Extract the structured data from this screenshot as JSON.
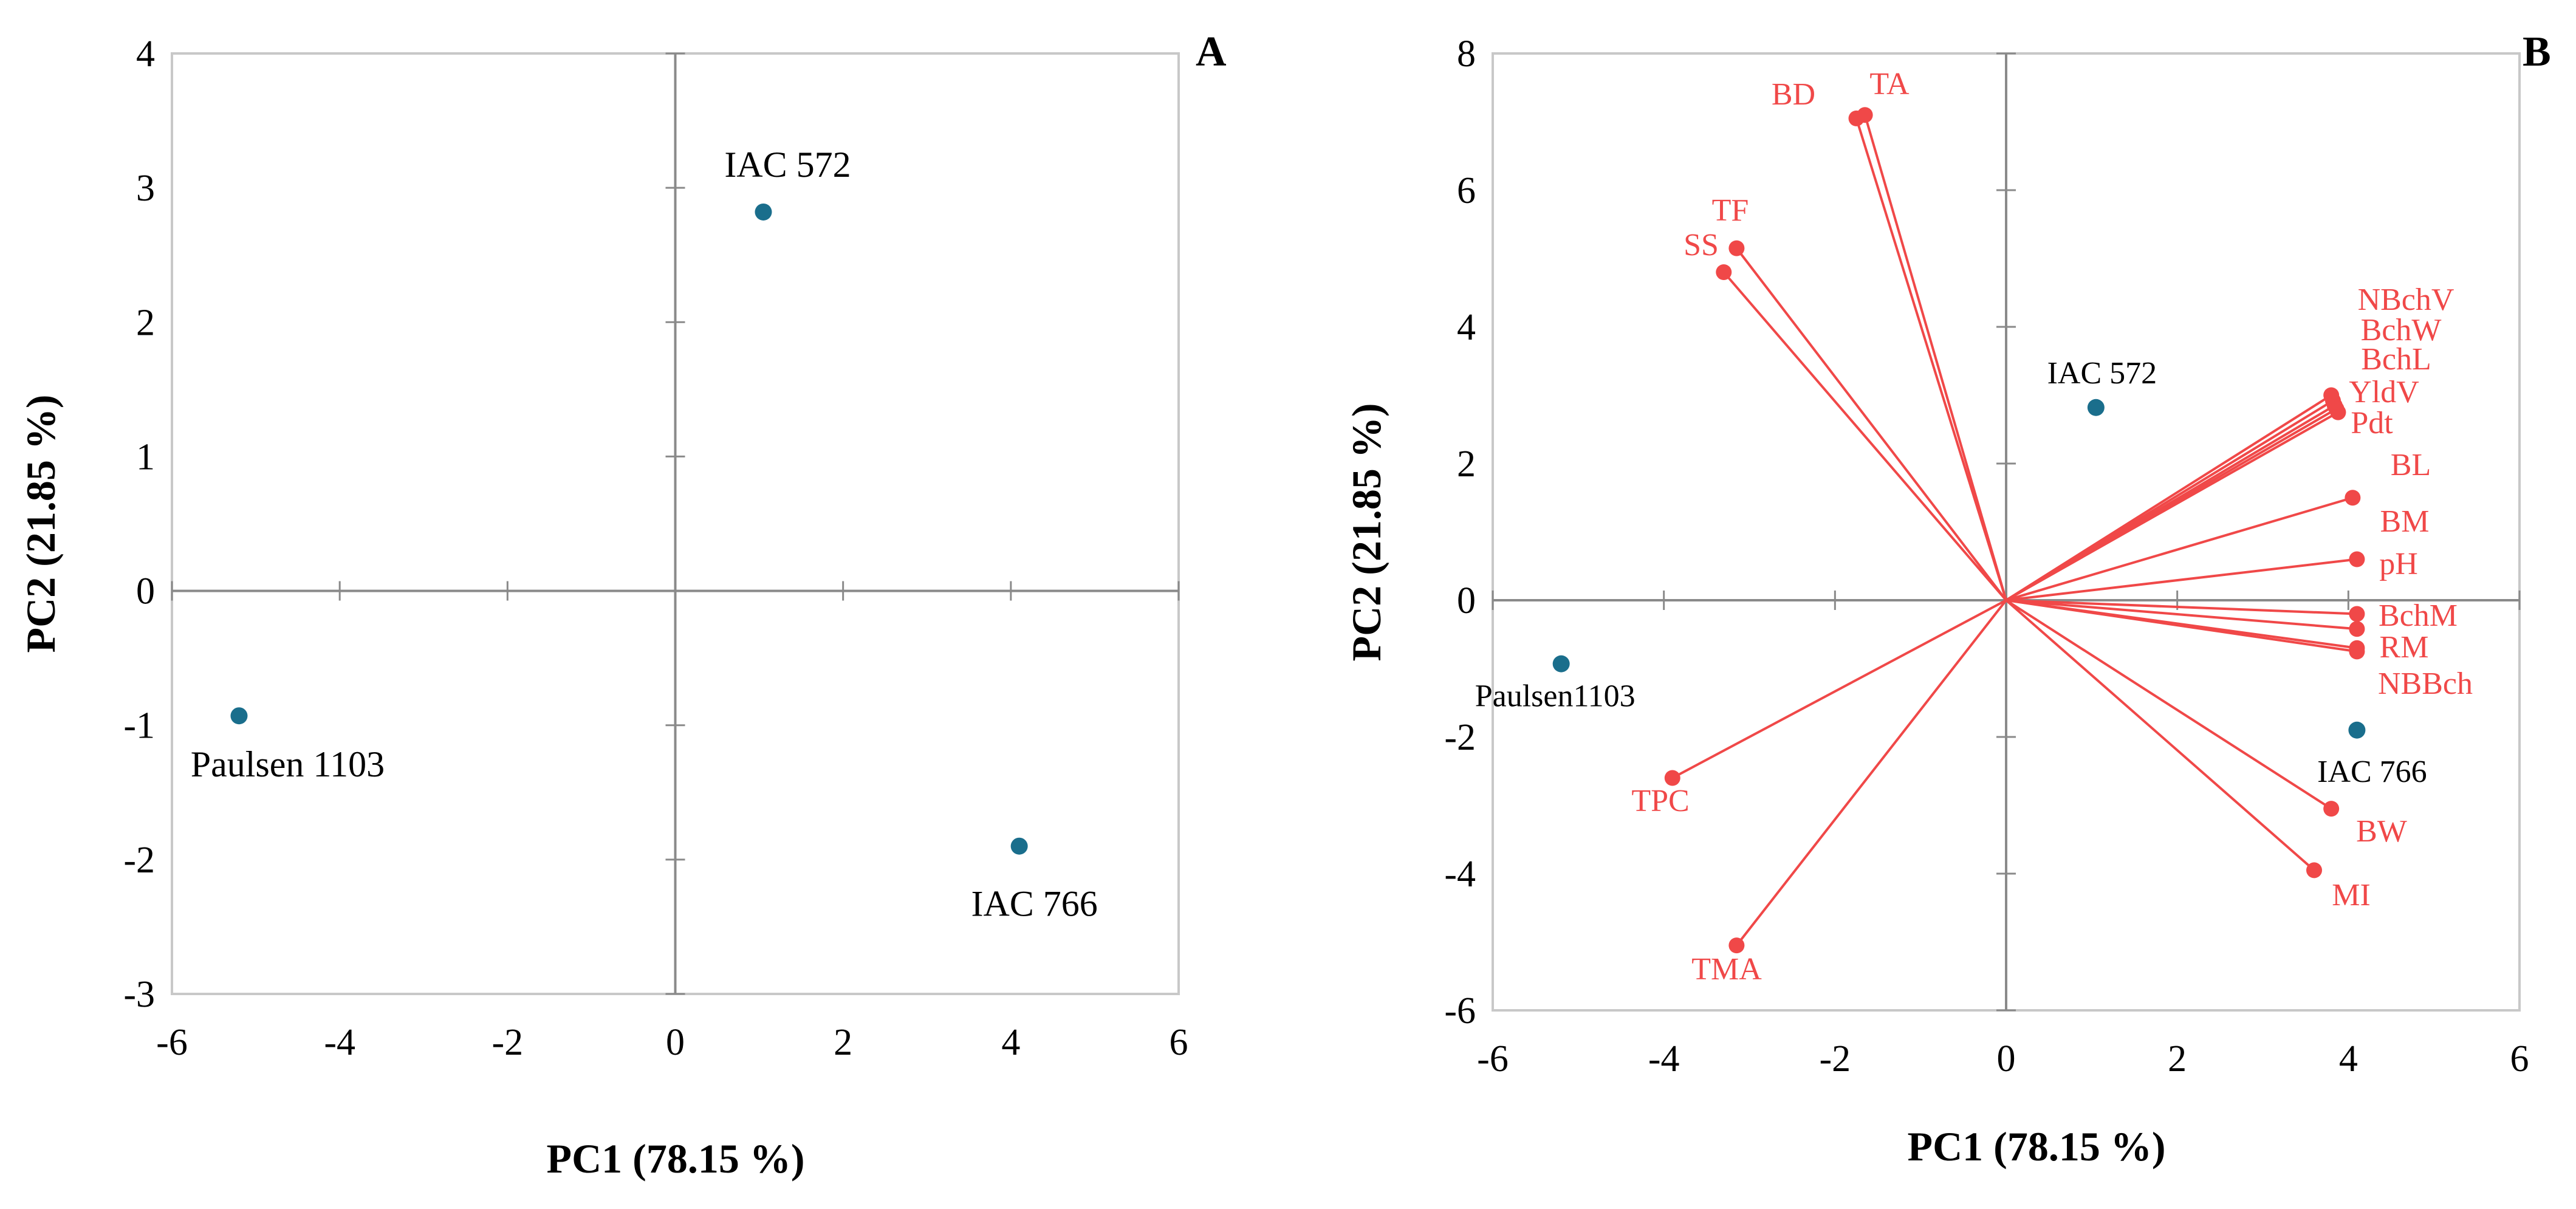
{
  "colors": {
    "score": "#1a6e8c",
    "loading": "#f04848",
    "axis": "#8a8a8a",
    "frame": "#c8c8c8"
  },
  "chart_data": [
    {
      "type": "scatter",
      "panel": "A",
      "xlabel": "PC1 (78.15 %)",
      "ylabel": "PC2 (21.85 %)",
      "xlim": [
        -6,
        6
      ],
      "ylim": [
        -3,
        4
      ],
      "xticks": [
        -6,
        -4,
        -2,
        0,
        2,
        4,
        6
      ],
      "yticks": [
        -3,
        -2,
        -1,
        0,
        1,
        2,
        3,
        4
      ],
      "points": [
        {
          "label": "IAC 572",
          "x": 1.05,
          "y": 2.82
        },
        {
          "label": "Paulsen 1103",
          "x": -5.2,
          "y": -0.93
        },
        {
          "label": "IAC 766",
          "x": 4.1,
          "y": -1.9
        }
      ]
    },
    {
      "type": "biplot",
      "panel": "B",
      "xlabel": "PC1 (78.15 %)",
      "ylabel": "PC2 (21.85 %)",
      "xlim": [
        -6,
        6
      ],
      "ylim": [
        -6,
        8
      ],
      "xticks": [
        -6,
        -4,
        -2,
        0,
        2,
        4,
        6
      ],
      "yticks": [
        -6,
        -4,
        -2,
        0,
        2,
        4,
        6,
        8
      ],
      "scores": [
        {
          "label": "IAC 572",
          "x": 1.05,
          "y": 2.82
        },
        {
          "label": "Paulsen1103",
          "x": -5.2,
          "y": -0.93
        },
        {
          "label": "IAC 766",
          "x": 4.1,
          "y": -1.9
        }
      ],
      "loadings": [
        {
          "label": "BD",
          "x": -1.75,
          "y": 7.05
        },
        {
          "label": "TA",
          "x": -1.65,
          "y": 7.1
        },
        {
          "label": "TF",
          "x": -3.15,
          "y": 5.15
        },
        {
          "label": "SS",
          "x": -3.3,
          "y": 4.8
        },
        {
          "label": "NBchV",
          "x": 3.8,
          "y": 3.0
        },
        {
          "label": "BchW",
          "x": 3.82,
          "y": 2.92
        },
        {
          "label": "BchL",
          "x": 3.84,
          "y": 2.85
        },
        {
          "label": "YldV",
          "x": 3.86,
          "y": 2.8
        },
        {
          "label": "Pdt",
          "x": 3.88,
          "y": 2.75
        },
        {
          "label": "BL",
          "x": 4.05,
          "y": 1.5
        },
        {
          "label": "BM",
          "x": 4.1,
          "y": 0.6
        },
        {
          "label": "pH",
          "x": 4.1,
          "y": -0.2
        },
        {
          "label": "BchM",
          "x": 4.1,
          "y": -0.42
        },
        {
          "label": "RM",
          "x": 4.1,
          "y": -0.7
        },
        {
          "label": "NBBch",
          "x": 4.1,
          "y": -0.75
        },
        {
          "label": "BW",
          "x": 3.8,
          "y": -3.05
        },
        {
          "label": "MI",
          "x": 3.6,
          "y": -3.95
        },
        {
          "label": "TPC",
          "x": -3.9,
          "y": -2.6
        },
        {
          "label": "TMA",
          "x": -3.15,
          "y": -5.05
        }
      ]
    }
  ]
}
